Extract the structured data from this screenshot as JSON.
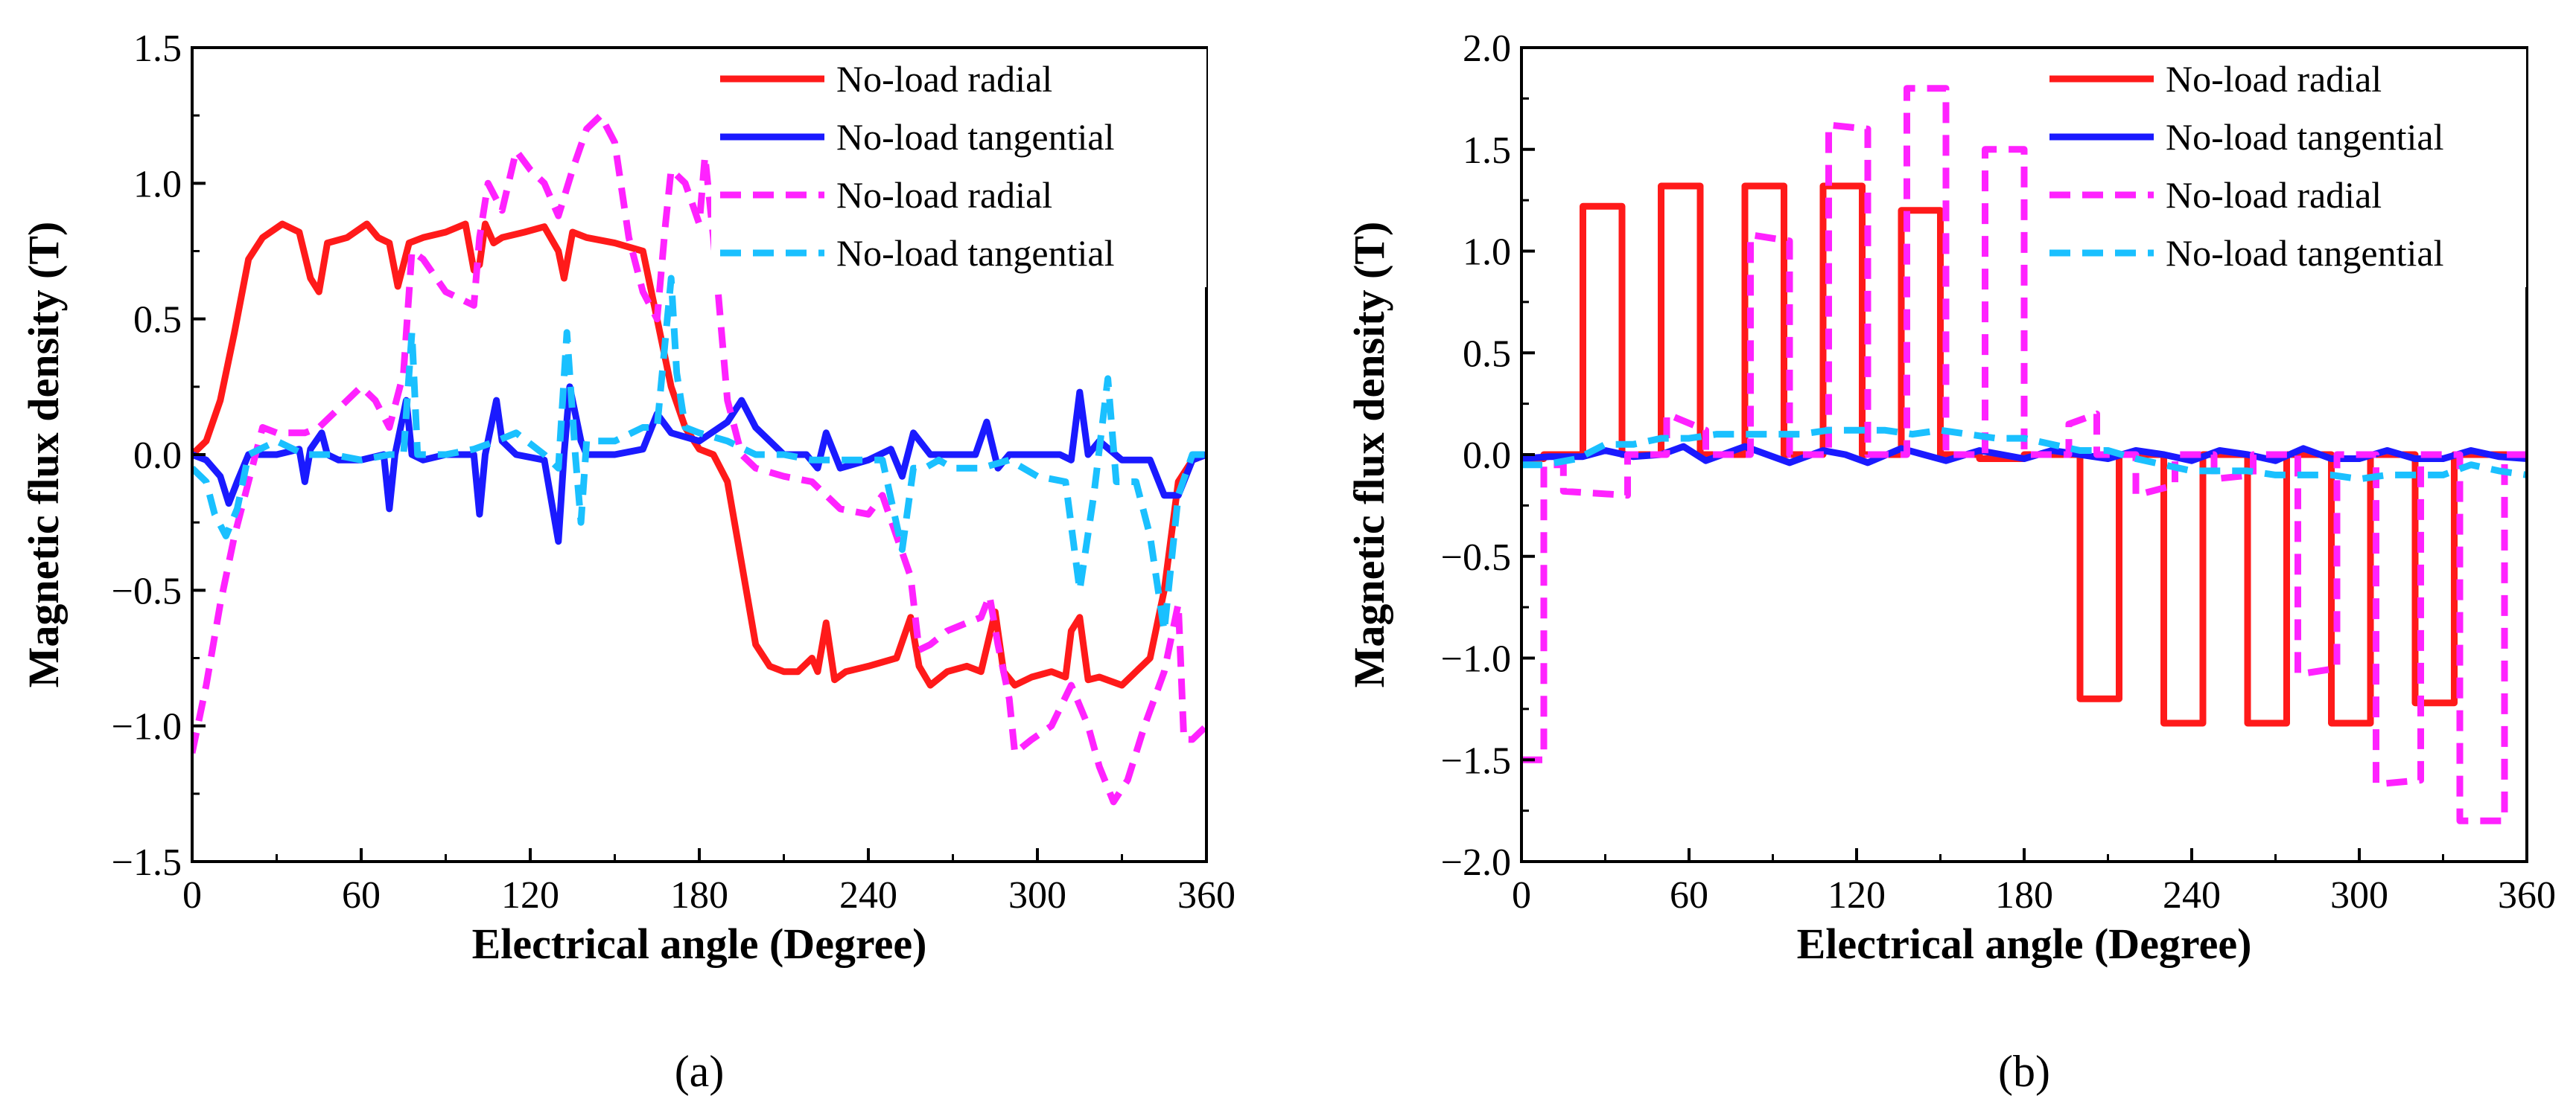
{
  "chart_data": [
    {
      "type": "line",
      "caption": "(a)",
      "xlabel": "Electrical angle (Degree)",
      "ylabel": "Magnetic flux density (T)",
      "xlim": [
        0,
        360
      ],
      "ylim": [
        -1.5,
        1.5
      ],
      "xticks": [
        0,
        60,
        120,
        180,
        240,
        300,
        360
      ],
      "yticks": [
        -1.5,
        -1.0,
        -0.5,
        0.0,
        0.5,
        1.0,
        1.5
      ],
      "xtick_labels": [
        "0",
        "60",
        "120",
        "180",
        "240",
        "300",
        "360"
      ],
      "ytick_labels": [
        "−1.5",
        "−1.0",
        "−0.5",
        "0.0",
        "0.5",
        "1.0",
        "1.5"
      ],
      "legend_position": "top-right",
      "series": [
        {
          "name": "No-load radial",
          "color": "#ff1a1a",
          "style": "solid",
          "x": [
            0,
            5,
            10,
            15,
            20,
            25,
            32,
            38,
            42,
            45,
            48,
            55,
            62,
            66,
            70,
            73,
            77,
            82,
            90,
            97,
            100,
            102,
            104,
            107,
            110,
            118,
            125,
            130,
            132,
            135,
            140,
            150,
            160,
            165,
            170,
            175,
            180,
            185,
            190,
            195,
            200,
            205,
            210,
            215,
            220,
            222,
            225,
            228,
            232,
            240,
            250,
            255,
            258,
            262,
            268,
            275,
            280,
            285,
            288,
            292,
            298,
            305,
            310,
            312,
            315,
            318,
            322,
            330,
            335,
            340,
            345,
            350,
            355,
            360
          ],
          "y": [
            0,
            0.05,
            0.2,
            0.45,
            0.72,
            0.8,
            0.85,
            0.82,
            0.65,
            0.6,
            0.78,
            0.8,
            0.85,
            0.8,
            0.78,
            0.62,
            0.78,
            0.8,
            0.82,
            0.85,
            0.68,
            0.7,
            0.85,
            0.78,
            0.8,
            0.82,
            0.84,
            0.75,
            0.65,
            0.82,
            0.8,
            0.78,
            0.75,
            0.5,
            0.25,
            0.1,
            0.02,
            0.0,
            -0.1,
            -0.4,
            -0.7,
            -0.78,
            -0.8,
            -0.8,
            -0.75,
            -0.8,
            -0.62,
            -0.83,
            -0.8,
            -0.78,
            -0.75,
            -0.6,
            -0.78,
            -0.85,
            -0.8,
            -0.78,
            -0.8,
            -0.58,
            -0.8,
            -0.85,
            -0.82,
            -0.8,
            -0.82,
            -0.65,
            -0.6,
            -0.83,
            -0.82,
            -0.85,
            -0.8,
            -0.75,
            -0.5,
            -0.1,
            -0.02,
            0
          ]
        },
        {
          "name": "No-load tangential",
          "color": "#1a1aff",
          "style": "solid",
          "x": [
            0,
            5,
            10,
            13,
            16,
            20,
            30,
            38,
            40,
            42,
            46,
            48,
            52,
            60,
            68,
            70,
            72,
            76,
            78,
            82,
            90,
            100,
            102,
            104,
            108,
            110,
            115,
            125,
            130,
            132,
            134,
            138,
            140,
            150,
            160,
            165,
            170,
            180,
            190,
            195,
            200,
            210,
            218,
            222,
            225,
            230,
            240,
            248,
            252,
            256,
            262,
            270,
            278,
            282,
            286,
            290,
            300,
            308,
            312,
            315,
            318,
            322,
            330,
            340,
            345,
            350,
            355,
            360
          ],
          "y": [
            0,
            -0.02,
            -0.08,
            -0.18,
            -0.1,
            0.0,
            0.0,
            0.02,
            -0.1,
            0.02,
            0.08,
            0.0,
            -0.02,
            -0.02,
            0.0,
            -0.2,
            0.0,
            0.2,
            0.0,
            -0.02,
            0.0,
            0.0,
            -0.22,
            0.0,
            0.2,
            0.05,
            0.0,
            -0.02,
            -0.32,
            0.0,
            0.25,
            0.05,
            0.0,
            0.0,
            0.02,
            0.15,
            0.08,
            0.05,
            0.12,
            0.2,
            0.1,
            0.0,
            0.0,
            -0.05,
            0.08,
            -0.05,
            -0.02,
            0.02,
            -0.08,
            0.08,
            0.0,
            0.0,
            0.0,
            0.12,
            -0.05,
            0.0,
            0.0,
            0.0,
            -0.02,
            0.23,
            0.0,
            0.05,
            -0.02,
            -0.02,
            -0.15,
            -0.15,
            -0.02,
            0
          ]
        },
        {
          "name": "No-load radial",
          "color": "#ff22ff",
          "style": "dashed",
          "x": [
            0,
            5,
            10,
            15,
            20,
            25,
            30,
            40,
            45,
            55,
            60,
            65,
            70,
            75,
            78,
            82,
            90,
            100,
            102,
            105,
            110,
            115,
            120,
            125,
            130,
            135,
            140,
            145,
            150,
            155,
            160,
            165,
            168,
            170,
            175,
            180,
            182,
            185,
            190,
            195,
            200,
            210,
            220,
            230,
            240,
            245,
            250,
            255,
            258,
            262,
            268,
            275,
            280,
            283,
            286,
            290,
            292,
            298,
            305,
            312,
            318,
            322,
            327,
            332,
            338,
            345,
            350,
            352,
            355,
            360
          ],
          "y": [
            -1.1,
            -0.85,
            -0.55,
            -0.3,
            -0.1,
            0.1,
            0.08,
            0.08,
            0.1,
            0.2,
            0.25,
            0.2,
            0.1,
            0.3,
            0.75,
            0.72,
            0.6,
            0.55,
            0.8,
            1.0,
            0.9,
            1.12,
            1.05,
            1.0,
            0.88,
            1.05,
            1.2,
            1.25,
            1.15,
            0.8,
            0.6,
            0.5,
            0.85,
            1.05,
            1.0,
            0.85,
            1.1,
            0.8,
            0.2,
            0.0,
            -0.05,
            -0.08,
            -0.1,
            -0.2,
            -0.22,
            -0.15,
            -0.3,
            -0.45,
            -0.72,
            -0.7,
            -0.65,
            -0.62,
            -0.6,
            -0.52,
            -0.7,
            -0.9,
            -1.1,
            -1.05,
            -1.0,
            -0.85,
            -1.0,
            -1.15,
            -1.28,
            -1.2,
            -1.0,
            -0.8,
            -0.55,
            -1.05,
            -1.05,
            -1.0
          ]
        },
        {
          "name": "No-load tangential",
          "color": "#1ac0ff",
          "style": "dashed",
          "x": [
            0,
            5,
            8,
            12,
            16,
            20,
            30,
            40,
            50,
            60,
            70,
            75,
            78,
            80,
            82,
            90,
            100,
            108,
            115,
            125,
            130,
            133,
            136,
            138,
            140,
            145,
            150,
            160,
            165,
            170,
            172,
            175,
            180,
            190,
            200,
            210,
            220,
            230,
            245,
            252,
            256,
            260,
            265,
            270,
            280,
            290,
            295,
            300,
            310,
            315,
            320,
            325,
            328,
            335,
            340,
            345,
            350,
            355,
            360
          ],
          "y": [
            -0.05,
            -0.1,
            -0.22,
            -0.3,
            -0.2,
            0.0,
            0.05,
            0.0,
            0.0,
            -0.02,
            0.0,
            0.0,
            0.45,
            0.0,
            0.0,
            0.0,
            0.02,
            0.05,
            0.08,
            0.0,
            -0.05,
            0.45,
            0.0,
            -0.25,
            0.05,
            0.05,
            0.05,
            0.1,
            0.1,
            0.65,
            0.3,
            0.1,
            0.08,
            0.05,
            0.0,
            0.0,
            -0.02,
            -0.02,
            -0.02,
            -0.35,
            -0.05,
            -0.05,
            -0.02,
            -0.05,
            -0.05,
            -0.02,
            -0.05,
            -0.08,
            -0.1,
            -0.5,
            -0.15,
            0.28,
            -0.1,
            -0.1,
            -0.3,
            -0.65,
            -0.15,
            0.0,
            0.0
          ]
        }
      ]
    },
    {
      "type": "line",
      "caption": "(b)",
      "xlabel": "Electrical angle (Degree)",
      "ylabel": "Magnetic flux density (T)",
      "xlim": [
        0,
        360
      ],
      "ylim": [
        -2.0,
        2.0
      ],
      "xticks": [
        0,
        60,
        120,
        180,
        240,
        300,
        360
      ],
      "yticks": [
        -2.0,
        -1.5,
        -1.0,
        -0.5,
        0.0,
        0.5,
        1.0,
        1.5,
        2.0
      ],
      "xtick_labels": [
        "0",
        "60",
        "120",
        "180",
        "240",
        "300",
        "360"
      ],
      "ytick_labels": [
        "−2.0",
        "−1.5",
        "−1.0",
        "−0.5",
        "0.0",
        "0.5",
        "1.0",
        "1.5",
        "2.0"
      ],
      "legend_position": "top-right",
      "series": [
        {
          "name": "No-load radial",
          "color": "#ff1a1a",
          "style": "solid",
          "x": [
            0,
            8,
            8,
            22,
            22,
            36,
            36,
            50,
            50,
            64,
            64,
            80,
            80,
            94,
            94,
            108,
            108,
            122,
            122,
            136,
            136,
            150,
            150,
            164,
            164,
            180,
            180,
            200,
            200,
            214,
            214,
            230,
            230,
            244,
            244,
            260,
            260,
            274,
            274,
            290,
            290,
            304,
            304,
            320,
            320,
            334,
            334,
            360
          ],
          "y": [
            -0.02,
            -0.02,
            0.0,
            0.0,
            1.22,
            1.22,
            0.0,
            0.0,
            1.32,
            1.32,
            0.0,
            0.0,
            1.32,
            1.32,
            0.0,
            0.0,
            1.32,
            1.32,
            0.0,
            0.0,
            1.2,
            1.2,
            0.0,
            0.0,
            -0.02,
            -0.02,
            0.0,
            0.0,
            -1.2,
            -1.2,
            0.0,
            0.0,
            -1.32,
            -1.32,
            0.0,
            0.0,
            -1.32,
            -1.32,
            0.0,
            0.0,
            -1.32,
            -1.32,
            0.0,
            0.0,
            -1.22,
            -1.22,
            0.0,
            0.0
          ]
        },
        {
          "name": "No-load tangential",
          "color": "#1a1aff",
          "style": "solid",
          "x": [
            0,
            10,
            22,
            30,
            40,
            50,
            58,
            66,
            80,
            88,
            96,
            108,
            116,
            124,
            136,
            144,
            152,
            164,
            172,
            180,
            190,
            200,
            210,
            220,
            230,
            240,
            250,
            260,
            270,
            280,
            290,
            300,
            310,
            320,
            330,
            340,
            350,
            360
          ],
          "y": [
            -0.02,
            -0.01,
            -0.01,
            0.02,
            -0.01,
            0.0,
            0.04,
            -0.03,
            0.04,
            0.0,
            -0.04,
            0.02,
            0.0,
            -0.04,
            0.03,
            0.0,
            -0.03,
            0.02,
            0.0,
            -0.02,
            0.02,
            0.0,
            -0.02,
            0.02,
            0.0,
            -0.03,
            0.02,
            0.0,
            -0.03,
            0.03,
            -0.02,
            -0.02,
            0.02,
            -0.02,
            -0.02,
            0.02,
            -0.01,
            -0.02
          ]
        },
        {
          "name": "No-load radial",
          "color": "#ff22ff",
          "style": "dashed",
          "x": [
            0,
            8,
            8,
            15,
            15,
            38,
            38,
            52,
            52,
            66,
            66,
            82,
            82,
            96,
            96,
            110,
            110,
            124,
            124,
            138,
            138,
            152,
            152,
            166,
            166,
            180,
            180,
            196,
            196,
            206,
            206,
            220,
            220,
            234,
            234,
            248,
            248,
            262,
            262,
            278,
            278,
            292,
            292,
            306,
            306,
            322,
            322,
            336,
            336,
            352,
            352,
            360
          ],
          "y": [
            -1.5,
            -1.5,
            -0.05,
            -0.05,
            -0.18,
            -0.2,
            0.0,
            0.0,
            0.2,
            0.12,
            0.0,
            0.0,
            1.08,
            1.05,
            0.0,
            0.0,
            1.62,
            1.6,
            0.0,
            0.0,
            1.8,
            1.8,
            0.0,
            0.0,
            1.5,
            1.5,
            0.0,
            0.0,
            0.15,
            0.2,
            0.0,
            0.0,
            -0.2,
            -0.15,
            0.0,
            0.0,
            -0.12,
            -0.1,
            0.0,
            0.0,
            -1.08,
            -1.05,
            0.0,
            0.0,
            -1.62,
            -1.6,
            0.0,
            0.0,
            -1.8,
            -1.8,
            0.0,
            0.0
          ]
        },
        {
          "name": "No-load tangential",
          "color": "#1ac0ff",
          "style": "dashed",
          "x": [
            0,
            8,
            20,
            30,
            40,
            50,
            60,
            70,
            80,
            90,
            100,
            110,
            120,
            130,
            140,
            150,
            160,
            170,
            180,
            190,
            200,
            210,
            220,
            230,
            240,
            250,
            260,
            270,
            280,
            290,
            300,
            310,
            320,
            330,
            340,
            350,
            360
          ],
          "y": [
            -0.05,
            -0.05,
            -0.02,
            0.05,
            0.05,
            0.08,
            0.08,
            0.1,
            0.1,
            0.1,
            0.1,
            0.12,
            0.12,
            0.12,
            0.1,
            0.12,
            0.1,
            0.08,
            0.08,
            0.05,
            0.02,
            0.02,
            -0.02,
            -0.05,
            -0.08,
            -0.08,
            -0.08,
            -0.1,
            -0.1,
            -0.1,
            -0.12,
            -0.1,
            -0.1,
            -0.1,
            -0.05,
            -0.08,
            -0.1
          ]
        }
      ]
    }
  ]
}
